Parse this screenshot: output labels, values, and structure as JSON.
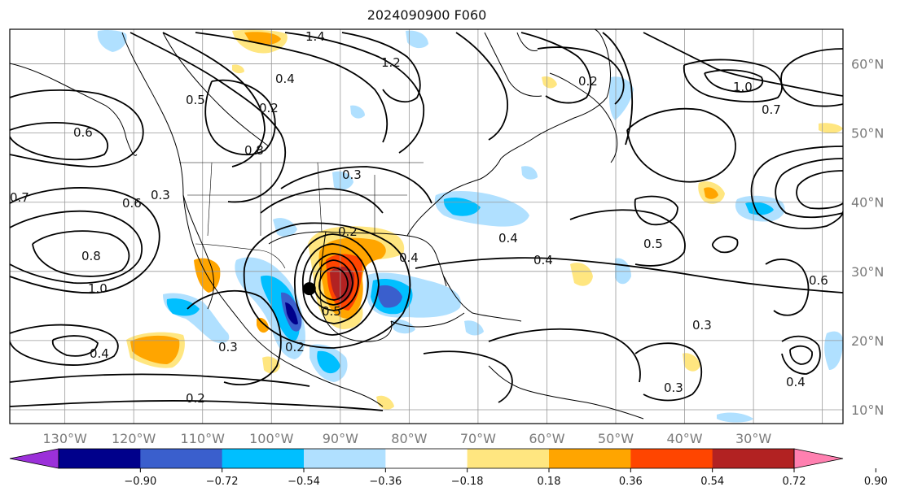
{
  "title": "2024090900 F060",
  "map": {
    "lon_range": [
      -138,
      -17
    ],
    "lat_range": [
      8,
      65
    ],
    "lon_labels": [
      "130°W",
      "120°W",
      "110°W",
      "100°W",
      "90°W",
      "80°W",
      "70°W",
      "60°W",
      "50°W",
      "40°W",
      "30°W"
    ],
    "lat_labels": [
      "10°N",
      "20°N",
      "30°N",
      "40°N",
      "50°N",
      "60°N"
    ],
    "contour_labels": [
      "0.2",
      "0.3",
      "0.4",
      "0.5",
      "0.6",
      "0.7",
      "0.8",
      "1.0",
      "1.2",
      "1.4"
    ],
    "storm_marker": {
      "lon": -94.5,
      "lat": 27.5
    }
  },
  "colorbar": {
    "ticks": [
      "−0.90",
      "−0.72",
      "−0.54",
      "−0.36",
      "−0.18",
      "0.18",
      "0.36",
      "0.54",
      "0.72",
      "0.90"
    ],
    "colors": [
      "#9b30d9",
      "#00008b",
      "#3a5fcd",
      "#00bfff",
      "#b0e0ff",
      "#ffffff",
      "#ffe680",
      "#ffa500",
      "#ff4500",
      "#b22222",
      "#ff80b0"
    ]
  },
  "colors": {
    "frame": "#000000",
    "grid": "#999999",
    "coast": "#000000"
  }
}
